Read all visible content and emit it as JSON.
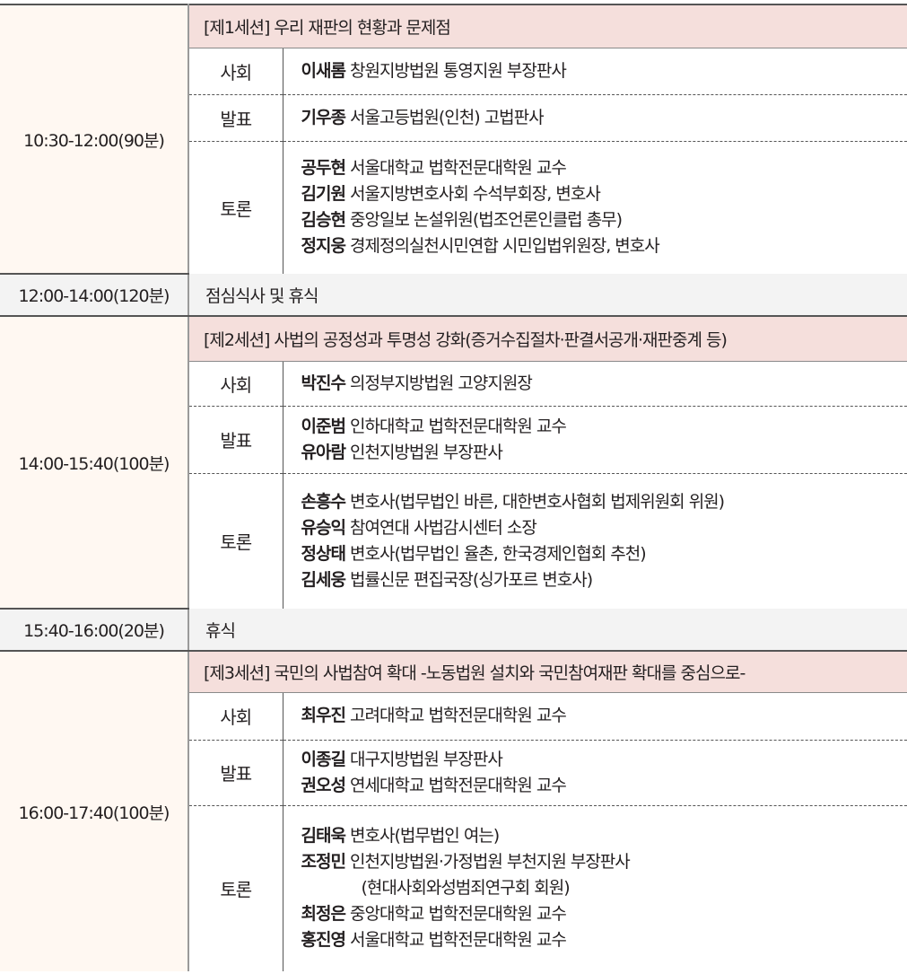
{
  "blocks": [
    {
      "type": "session",
      "time": "10:30-12:00(90분)",
      "title": "[제1세션] 우리 재판의 현황과 문제점",
      "roles": [
        {
          "role": "사회",
          "people": [
            {
              "name": "이새롬",
              "desc": "창원지방법원 통영지원 부장판사"
            }
          ]
        },
        {
          "role": "발표",
          "people": [
            {
              "name": "기우종",
              "desc": "서울고등법원(인천) 고법판사"
            }
          ]
        },
        {
          "role": "토론",
          "people": [
            {
              "name": "공두현",
              "desc": "서울대학교 법학전문대학원 교수"
            },
            {
              "name": "김기원",
              "desc": "서울지방변호사회 수석부회장, 변호사"
            },
            {
              "name": "김승현",
              "desc": "중앙일보 논설위원(법조언론인클럽 총무)"
            },
            {
              "name": "정지웅",
              "desc": "경제정의실천시민연합 시민입법위원장, 변호사"
            }
          ]
        }
      ]
    },
    {
      "type": "break",
      "time": "12:00-14:00(120분)",
      "label": "점심식사 및 휴식"
    },
    {
      "type": "session",
      "time": "14:00-15:40(100분)",
      "title": "[제2세션] 사법의 공정성과 투명성 강화(증거수집절차·판결서공개·재판중계 등)",
      "roles": [
        {
          "role": "사회",
          "people": [
            {
              "name": "박진수",
              "desc": "의정부지방법원 고양지원장"
            }
          ]
        },
        {
          "role": "발표",
          "people": [
            {
              "name": "이준범",
              "desc": "인하대학교 법학전문대학원 교수"
            },
            {
              "name": "유아람",
              "desc": "인천지방법원 부장판사"
            }
          ]
        },
        {
          "role": "토론",
          "people": [
            {
              "name": "손흥수",
              "desc": "변호사(법무법인 바른, 대한변호사협회 법제위원회 위원)"
            },
            {
              "name": "유승익",
              "desc": "참여연대 사법감시센터 소장"
            },
            {
              "name": "정상태",
              "desc": "변호사(법무법인 율촌, 한국경제인협회 추천)"
            },
            {
              "name": "김세웅",
              "desc": "법률신문 편집국장(싱가포르 변호사)"
            }
          ]
        }
      ]
    },
    {
      "type": "break",
      "time": "15:40-16:00(20분)",
      "label": "휴식"
    },
    {
      "type": "session",
      "time": "16:00-17:40(100분)",
      "title": "[제3세션] 국민의 사법참여 확대 -노동법원 설치와 국민참여재판 확대를 중심으로-",
      "roles": [
        {
          "role": "사회",
          "people": [
            {
              "name": "최우진",
              "desc": "고려대학교 법학전문대학원 교수"
            }
          ]
        },
        {
          "role": "발표",
          "people": [
            {
              "name": "이종길",
              "desc": "대구지방법원 부장판사"
            },
            {
              "name": "권오성",
              "desc": "연세대학교 법학전문대학원 교수"
            }
          ]
        },
        {
          "role": "토론",
          "people": [
            {
              "name": "김태욱",
              "desc": "변호사(법무법인 여는)"
            },
            {
              "name": "조정민",
              "desc": "인천지방법원·가정법원 부천지원 부장판사",
              "note": "(현대사회와성범죄연구회 회원)"
            },
            {
              "name": "최정은",
              "desc": "중앙대학교 법학전문대학원 교수"
            },
            {
              "name": "홍진영",
              "desc": "서울대학교 법학전문대학원 교수"
            }
          ]
        }
      ]
    }
  ],
  "colors": {
    "time_bg": "#fff8f2",
    "session_header_bg": "#f5dfdc",
    "break_bg": "#f3f3f3"
  }
}
